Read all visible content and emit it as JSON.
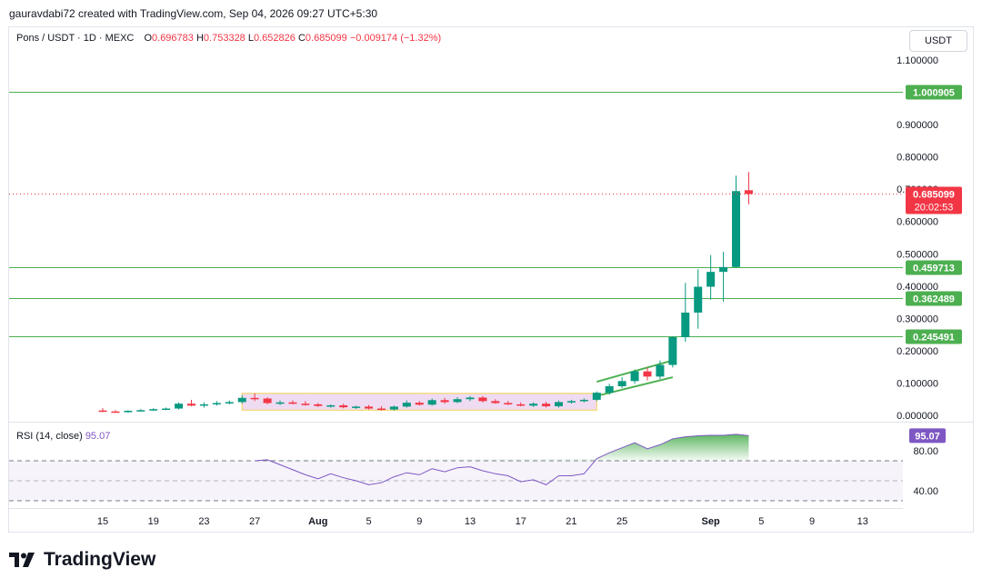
{
  "header": {
    "credit": "gauravdabi72 created with TradingView.com, Sep 04, 2026 09:27 UTC+5:30"
  },
  "legend": {
    "symbol": "Pons / USDT · 1D · MEXC",
    "o_label": "O",
    "o": "0.696783",
    "h_label": "H",
    "h": "0.753328",
    "l_label": "L",
    "l": "0.652826",
    "c_label": "C",
    "c": "0.685099",
    "change": "−0.009174 (−1.32%)"
  },
  "currency_button": "USDT",
  "rsi": {
    "label": "RSI (14, close)",
    "value": "95.07",
    "axis_ticks": [
      "80.00",
      "40.00"
    ]
  },
  "brand": "TradingView",
  "colors": {
    "up": "#089981",
    "down": "#f23645",
    "level": "#4caf50",
    "rsi": "#7e57c2",
    "range_box": "#e1bee7",
    "range_border": "#f5d76e"
  },
  "chart_data": {
    "type": "candlestick",
    "symbol": "Pons / USDT",
    "x_tick_labels": [
      "15",
      "19",
      "23",
      "27",
      "Aug",
      "5",
      "9",
      "13",
      "17",
      "21",
      "25",
      "Sep",
      "5",
      "9",
      "13"
    ],
    "y_tick_labels": [
      "1.100000",
      "0.900000",
      "0.800000",
      "0.700000",
      "0.600000",
      "0.500000",
      "0.400000",
      "0.300000",
      "0.200000",
      "0.100000",
      "0.000000"
    ],
    "ylim": [
      0,
      1.1
    ],
    "levels": [
      1.000905,
      0.459713,
      0.362489,
      0.245491
    ],
    "last_price": "0.685099",
    "countdown": "20:02:53",
    "candles": [
      {
        "date": "Jul 15",
        "o": 0.015,
        "h": 0.022,
        "l": 0.01,
        "c": 0.012
      },
      {
        "date": "Jul 16",
        "o": 0.012,
        "h": 0.016,
        "l": 0.009,
        "c": 0.01
      },
      {
        "date": "Jul 17",
        "o": 0.01,
        "h": 0.016,
        "l": 0.008,
        "c": 0.014
      },
      {
        "date": "Jul 18",
        "o": 0.014,
        "h": 0.019,
        "l": 0.012,
        "c": 0.016
      },
      {
        "date": "Jul 19",
        "o": 0.016,
        "h": 0.022,
        "l": 0.014,
        "c": 0.019
      },
      {
        "date": "Jul 20",
        "o": 0.019,
        "h": 0.024,
        "l": 0.016,
        "c": 0.021
      },
      {
        "date": "Jul 21",
        "o": 0.021,
        "h": 0.04,
        "l": 0.018,
        "c": 0.036
      },
      {
        "date": "Jul 22",
        "o": 0.036,
        "h": 0.048,
        "l": 0.028,
        "c": 0.03
      },
      {
        "date": "Jul 23",
        "o": 0.03,
        "h": 0.04,
        "l": 0.024,
        "c": 0.034
      },
      {
        "date": "Jul 24",
        "o": 0.034,
        "h": 0.044,
        "l": 0.03,
        "c": 0.038
      },
      {
        "date": "Jul 25",
        "o": 0.038,
        "h": 0.046,
        "l": 0.034,
        "c": 0.041
      },
      {
        "date": "Jul 26",
        "o": 0.041,
        "h": 0.062,
        "l": 0.036,
        "c": 0.054
      },
      {
        "date": "Jul 27",
        "o": 0.054,
        "h": 0.068,
        "l": 0.044,
        "c": 0.052
      },
      {
        "date": "Jul 28",
        "o": 0.052,
        "h": 0.056,
        "l": 0.034,
        "c": 0.038
      },
      {
        "date": "Jul 29",
        "o": 0.038,
        "h": 0.046,
        "l": 0.032,
        "c": 0.04
      },
      {
        "date": "Jul 30",
        "o": 0.04,
        "h": 0.046,
        "l": 0.034,
        "c": 0.036
      },
      {
        "date": "Jul 31",
        "o": 0.036,
        "h": 0.044,
        "l": 0.03,
        "c": 0.034
      },
      {
        "date": "Aug 1",
        "o": 0.034,
        "h": 0.038,
        "l": 0.026,
        "c": 0.029
      },
      {
        "date": "Aug 2",
        "o": 0.029,
        "h": 0.034,
        "l": 0.024,
        "c": 0.031
      },
      {
        "date": "Aug 3",
        "o": 0.031,
        "h": 0.036,
        "l": 0.022,
        "c": 0.025
      },
      {
        "date": "Aug 4",
        "o": 0.025,
        "h": 0.03,
        "l": 0.02,
        "c": 0.027
      },
      {
        "date": "Aug 5",
        "o": 0.027,
        "h": 0.032,
        "l": 0.018,
        "c": 0.021
      },
      {
        "date": "Aug 6",
        "o": 0.021,
        "h": 0.028,
        "l": 0.015,
        "c": 0.018
      },
      {
        "date": "Aug 7",
        "o": 0.018,
        "h": 0.03,
        "l": 0.015,
        "c": 0.027
      },
      {
        "date": "Aug 8",
        "o": 0.027,
        "h": 0.046,
        "l": 0.024,
        "c": 0.039
      },
      {
        "date": "Aug 9",
        "o": 0.039,
        "h": 0.044,
        "l": 0.03,
        "c": 0.033
      },
      {
        "date": "Aug 10",
        "o": 0.033,
        "h": 0.052,
        "l": 0.03,
        "c": 0.047
      },
      {
        "date": "Aug 11",
        "o": 0.047,
        "h": 0.054,
        "l": 0.036,
        "c": 0.041
      },
      {
        "date": "Aug 12",
        "o": 0.041,
        "h": 0.056,
        "l": 0.038,
        "c": 0.05
      },
      {
        "date": "Aug 13",
        "o": 0.05,
        "h": 0.06,
        "l": 0.044,
        "c": 0.055
      },
      {
        "date": "Aug 14",
        "o": 0.055,
        "h": 0.06,
        "l": 0.04,
        "c": 0.044
      },
      {
        "date": "Aug 15",
        "o": 0.044,
        "h": 0.05,
        "l": 0.036,
        "c": 0.038
      },
      {
        "date": "Aug 16",
        "o": 0.038,
        "h": 0.044,
        "l": 0.032,
        "c": 0.034
      },
      {
        "date": "Aug 17",
        "o": 0.034,
        "h": 0.04,
        "l": 0.028,
        "c": 0.03
      },
      {
        "date": "Aug 18",
        "o": 0.03,
        "h": 0.04,
        "l": 0.026,
        "c": 0.036
      },
      {
        "date": "Aug 19",
        "o": 0.036,
        "h": 0.042,
        "l": 0.024,
        "c": 0.028
      },
      {
        "date": "Aug 20",
        "o": 0.028,
        "h": 0.046,
        "l": 0.024,
        "c": 0.041
      },
      {
        "date": "Aug 21",
        "o": 0.041,
        "h": 0.048,
        "l": 0.036,
        "c": 0.044
      },
      {
        "date": "Aug 22",
        "o": 0.044,
        "h": 0.052,
        "l": 0.04,
        "c": 0.048
      },
      {
        "date": "Aug 23",
        "o": 0.048,
        "h": 0.074,
        "l": 0.044,
        "c": 0.07
      },
      {
        "date": "Aug 24",
        "o": 0.07,
        "h": 0.098,
        "l": 0.064,
        "c": 0.09
      },
      {
        "date": "Aug 25",
        "o": 0.09,
        "h": 0.118,
        "l": 0.084,
        "c": 0.106
      },
      {
        "date": "Aug 26",
        "o": 0.106,
        "h": 0.142,
        "l": 0.098,
        "c": 0.136
      },
      {
        "date": "Aug 27",
        "o": 0.136,
        "h": 0.148,
        "l": 0.108,
        "c": 0.12
      },
      {
        "date": "Aug 28",
        "o": 0.12,
        "h": 0.17,
        "l": 0.112,
        "c": 0.156
      },
      {
        "date": "Aug 29",
        "o": 0.156,
        "h": 0.245,
        "l": 0.148,
        "c": 0.242
      },
      {
        "date": "Aug 30",
        "o": 0.242,
        "h": 0.41,
        "l": 0.228,
        "c": 0.318
      },
      {
        "date": "Aug 31",
        "o": 0.318,
        "h": 0.452,
        "l": 0.268,
        "c": 0.398
      },
      {
        "date": "Sep 1",
        "o": 0.398,
        "h": 0.496,
        "l": 0.358,
        "c": 0.444
      },
      {
        "date": "Sep 2",
        "o": 0.444,
        "h": 0.506,
        "l": 0.352,
        "c": 0.459
      },
      {
        "date": "Sep 3",
        "o": 0.459,
        "h": 0.742,
        "l": 0.456,
        "c": 0.694
      },
      {
        "date": "Sep 4",
        "o": 0.696783,
        "h": 0.753328,
        "l": 0.652826,
        "c": 0.685099
      }
    ],
    "range_box": {
      "from": "Jul 26",
      "to": "Aug 23",
      "low": 0.016,
      "high": 0.068
    },
    "channel": {
      "from": "Aug 23",
      "to": "Aug 29",
      "upper": [
        0.104,
        0.17
      ],
      "lower": [
        0.06,
        0.118
      ]
    },
    "rsi_series": [
      {
        "date": "Jul 27",
        "v": 70
      },
      {
        "date": "Jul 28",
        "v": 71
      },
      {
        "date": "Jul 29",
        "v": 66
      },
      {
        "date": "Jul 30",
        "v": 61
      },
      {
        "date": "Jul 31",
        "v": 56
      },
      {
        "date": "Aug 1",
        "v": 52
      },
      {
        "date": "Aug 2",
        "v": 57
      },
      {
        "date": "Aug 3",
        "v": 53
      },
      {
        "date": "Aug 4",
        "v": 50
      },
      {
        "date": "Aug 5",
        "v": 46
      },
      {
        "date": "Aug 6",
        "v": 48
      },
      {
        "date": "Aug 7",
        "v": 54
      },
      {
        "date": "Aug 8",
        "v": 58
      },
      {
        "date": "Aug 9",
        "v": 56
      },
      {
        "date": "Aug 10",
        "v": 62
      },
      {
        "date": "Aug 11",
        "v": 59
      },
      {
        "date": "Aug 12",
        "v": 63
      },
      {
        "date": "Aug 13",
        "v": 64
      },
      {
        "date": "Aug 14",
        "v": 60
      },
      {
        "date": "Aug 15",
        "v": 57
      },
      {
        "date": "Aug 16",
        "v": 55
      },
      {
        "date": "Aug 17",
        "v": 49
      },
      {
        "date": "Aug 18",
        "v": 51
      },
      {
        "date": "Aug 19",
        "v": 46
      },
      {
        "date": "Aug 20",
        "v": 55
      },
      {
        "date": "Aug 21",
        "v": 55
      },
      {
        "date": "Aug 22",
        "v": 57
      },
      {
        "date": "Aug 23",
        "v": 72
      },
      {
        "date": "Aug 24",
        "v": 78
      },
      {
        "date": "Aug 25",
        "v": 83
      },
      {
        "date": "Aug 26",
        "v": 88
      },
      {
        "date": "Aug 27",
        "v": 82
      },
      {
        "date": "Aug 28",
        "v": 86
      },
      {
        "date": "Aug 29",
        "v": 92
      },
      {
        "date": "Aug 30",
        "v": 94
      },
      {
        "date": "Aug 31",
        "v": 95
      },
      {
        "date": "Sep 1",
        "v": 95.5
      },
      {
        "date": "Sep 2",
        "v": 95.5
      },
      {
        "date": "Sep 3",
        "v": 96.5
      },
      {
        "date": "Sep 4",
        "v": 95.07
      }
    ],
    "rsi_bands": {
      "upper": 70,
      "middle": 50,
      "lower": 30
    }
  }
}
